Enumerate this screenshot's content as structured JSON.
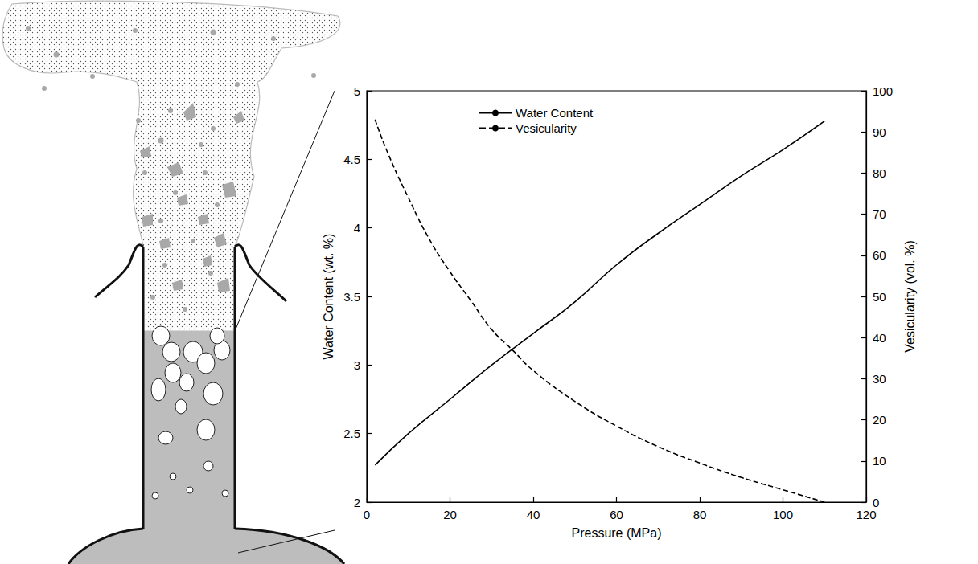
{
  "chart_data": {
    "type": "line",
    "x_label": "Pressure (MPa)",
    "y_label": "Water Content (wt. %)",
    "y2_label": "Vesicularity (vol. %)",
    "xlim": [
      0,
      120
    ],
    "xticks": [
      0,
      20,
      40,
      60,
      80,
      100,
      120
    ],
    "ylim": [
      2,
      5
    ],
    "yticks": [
      2,
      2.5,
      3,
      3.5,
      4,
      4.5,
      5
    ],
    "y2lim": [
      0,
      100
    ],
    "y2ticks": [
      0,
      10,
      20,
      30,
      40,
      50,
      60,
      70,
      80,
      90,
      100
    ],
    "grid": false,
    "legend": "upper left",
    "series": [
      {
        "name": "Water Content",
        "color": "#000000",
        "line_style": "solid",
        "x": [
          2,
          10,
          20,
          30,
          40,
          50,
          60,
          70,
          80,
          90,
          100,
          110
        ],
        "values": [
          2.27,
          2.5,
          2.75,
          3.0,
          3.23,
          3.46,
          3.73,
          3.96,
          4.17,
          4.38,
          4.57,
          4.78
        ]
      },
      {
        "name": "Vesicularity",
        "color": "#000000",
        "line_style": "dashed",
        "axis": "y2",
        "x": [
          2,
          5,
          10,
          15,
          20,
          25,
          30,
          35,
          40,
          50,
          60,
          70,
          80,
          90,
          100,
          110
        ],
        "values": [
          93,
          85,
          74,
          64,
          56,
          49,
          42,
          37,
          32,
          24.5,
          18.5,
          13.5,
          9.5,
          6,
          3,
          0
        ]
      }
    ]
  }
}
